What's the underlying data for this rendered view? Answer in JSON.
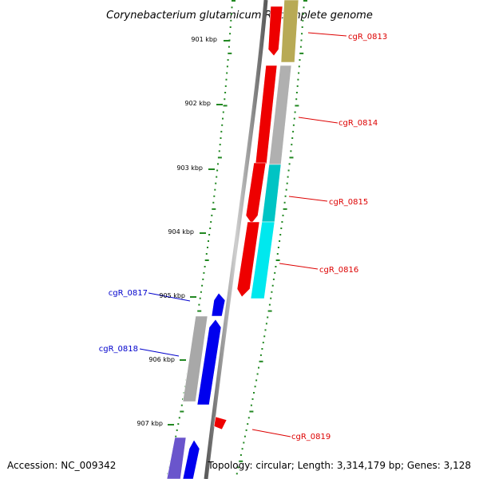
{
  "title": "Corynebacterium glutamicum R, complete genome",
  "kbp_ticks": [
    "901 kbp",
    "902 kbp",
    "903 kbp",
    "904 kbp",
    "905 kbp",
    "906 kbp",
    "907 kbp"
  ],
  "genes_forward": [
    {
      "label": "cgR_0813",
      "color": "#b8aa55"
    },
    {
      "label": "cgR_0814",
      "color": "#b0b0b0"
    },
    {
      "label": "cgR_0815",
      "color": "#00c4c4"
    },
    {
      "label": "cgR_0816",
      "color": "#00e8ee"
    }
  ],
  "genes_reverse": [
    {
      "label": "cgR_0817",
      "color": "#0000ee"
    },
    {
      "label": "cgR_0818",
      "color": "#a8a8a8"
    },
    {
      "label": "cgR_0819",
      "color": "#ee0000"
    }
  ],
  "colors": {
    "strand_red": "#ee0000",
    "strand_blue": "#0000ee",
    "backbone": "#888888",
    "tick": "#228822",
    "label_red": "#dd0000",
    "label_blue": "#0000cc"
  },
  "footer": {
    "accession": "Accession: NC_009342",
    "topology": "Topology: circular; Length: 3,314,179 bp; Genes: 3,128"
  }
}
